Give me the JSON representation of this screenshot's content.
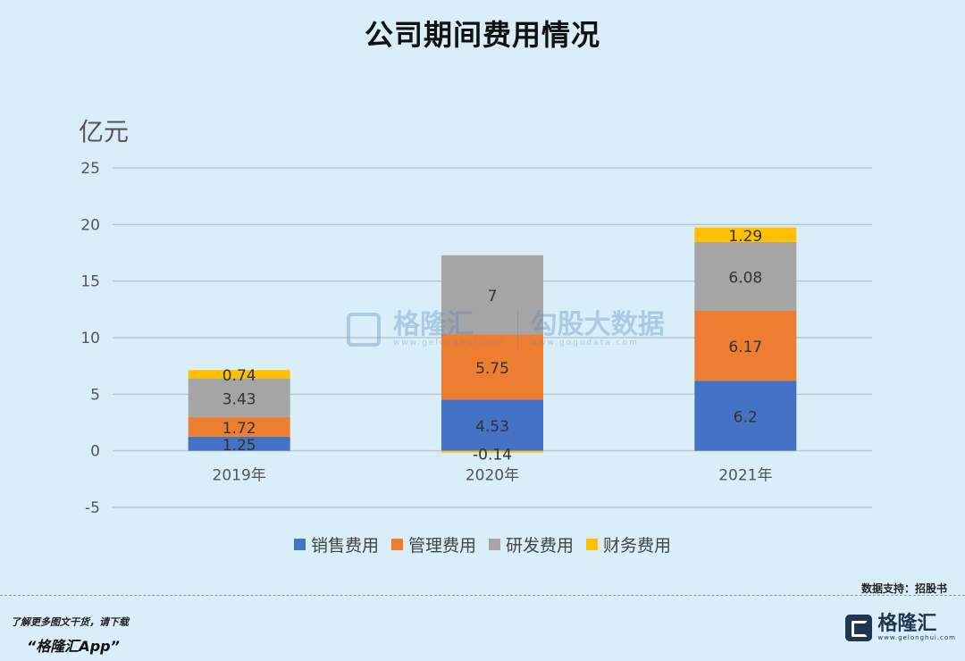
{
  "page": {
    "title": "公司期间费用情况",
    "unit": "亿元",
    "source": "数据支持：招股书",
    "footer_note": "了解更多图文干货，请下载",
    "footer_app": "“格隆汇App”",
    "brand_name": "格隆汇",
    "brand_url": "www.gelonghui.com",
    "watermark_name": "格隆汇",
    "watermark_sub": "www.gelonghui.com",
    "watermark_name2": "勾股大数据",
    "watermark_sub2": "www.gogudata.com"
  },
  "chart_data": {
    "type": "bar",
    "stacked": true,
    "title": "公司期间费用情况",
    "ylabel": "亿元",
    "ylim": [
      -5,
      25
    ],
    "yticks": [
      25,
      20,
      15,
      10,
      5,
      0,
      -5
    ],
    "grid": true,
    "legend_position": "bottom",
    "categories": [
      "2019年",
      "2020年",
      "2021年"
    ],
    "series": [
      {
        "name": "销售费用",
        "color": "#4472c4",
        "values": [
          1.25,
          4.53,
          6.2
        ]
      },
      {
        "name": "管理费用",
        "color": "#ed7d31",
        "values": [
          1.72,
          5.75,
          6.17
        ]
      },
      {
        "name": "研发费用",
        "color": "#a5a5a5",
        "values": [
          3.43,
          7,
          6.08
        ]
      },
      {
        "name": "财务费用",
        "color": "#ffc000",
        "values": [
          0.74,
          -0.14,
          1.29
        ]
      }
    ]
  }
}
